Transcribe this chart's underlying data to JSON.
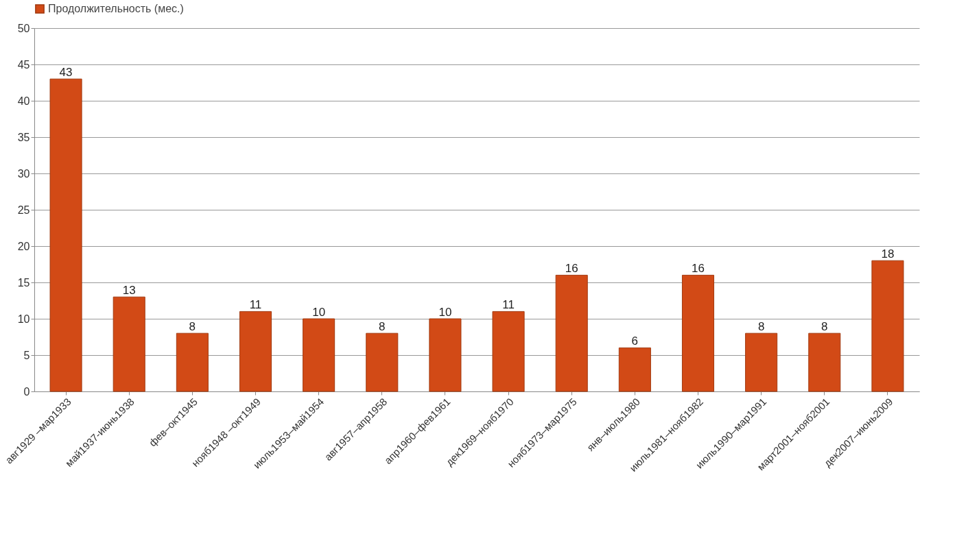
{
  "chart_data": {
    "type": "bar",
    "categories": [
      "авг1929 –мар1933",
      "май1937-июнь1938",
      "фев–окт1945",
      "нояб1948 –окт1949",
      "июль1953–май1954",
      "авг1957–апр1958",
      "апр1960–фев1961",
      "дек1969–нояб1970",
      "нояб1973–мар1975",
      "янв–июль1980",
      "июль1981–нояб1982",
      "июль1990–мар1991",
      "март2001–нояб2001",
      "дек2007–июнь2009"
    ],
    "series": [
      {
        "name": "Продолжительность (мес.)",
        "color": "#d24a16",
        "values": [
          43,
          13,
          8,
          11,
          10,
          8,
          10,
          11,
          16,
          6,
          16,
          8,
          8,
          18
        ]
      }
    ],
    "ylim": [
      0,
      50
    ],
    "yticks": [
      0,
      5,
      10,
      15,
      20,
      25,
      30,
      35,
      40,
      45,
      50
    ],
    "grid": "y",
    "legend": "top",
    "data_labels": true
  }
}
